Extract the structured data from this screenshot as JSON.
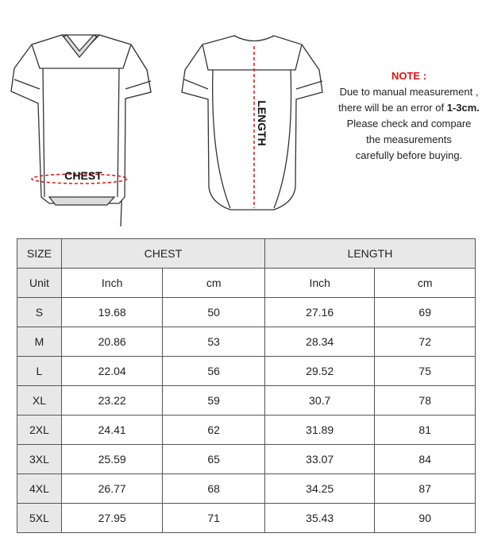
{
  "diagram": {
    "chest_label": "CHEST",
    "length_label": "LENGTH",
    "measure_color": "#e01010"
  },
  "note": {
    "title": "NOTE :",
    "line1": "Due to manual measurement ,",
    "line2_prefix": "there will be an error of ",
    "line2_bold": "1-3cm.",
    "line3": "Please check and compare",
    "line4": "the measurements",
    "line5": "carefully before buying."
  },
  "table": {
    "headers": {
      "size": "SIZE",
      "chest": "CHEST",
      "length": "LENGTH"
    },
    "units": {
      "label": "Unit",
      "chest_inch": "Inch",
      "chest_cm": "cm",
      "length_inch": "Inch",
      "length_cm": "cm"
    },
    "rows": [
      {
        "size": "S",
        "chest_inch": "19.68",
        "chest_cm": "50",
        "length_inch": "27.16",
        "length_cm": "69"
      },
      {
        "size": "M",
        "chest_inch": "20.86",
        "chest_cm": "53",
        "length_inch": "28.34",
        "length_cm": "72"
      },
      {
        "size": "L",
        "chest_inch": "22.04",
        "chest_cm": "56",
        "length_inch": "29.52",
        "length_cm": "75"
      },
      {
        "size": "XL",
        "chest_inch": "23.22",
        "chest_cm": "59",
        "length_inch": "30.7",
        "length_cm": "78"
      },
      {
        "size": "2XL",
        "chest_inch": "24.41",
        "chest_cm": "62",
        "length_inch": "31.89",
        "length_cm": "81"
      },
      {
        "size": "3XL",
        "chest_inch": "25.59",
        "chest_cm": "65",
        "length_inch": "33.07",
        "length_cm": "84"
      },
      {
        "size": "4XL",
        "chest_inch": "26.77",
        "chest_cm": "68",
        "length_inch": "34.25",
        "length_cm": "87"
      },
      {
        "size": "5XL",
        "chest_inch": "27.95",
        "chest_cm": "71",
        "length_inch": "35.43",
        "length_cm": "90"
      }
    ]
  }
}
